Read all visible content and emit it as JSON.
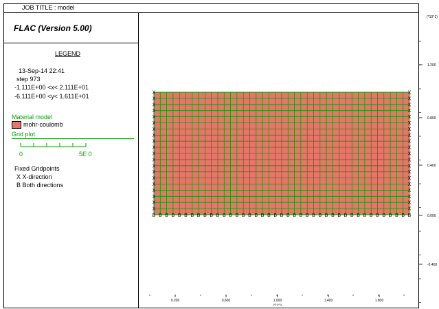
{
  "header": {
    "job_title": "JOB TITLE : model"
  },
  "left_panel": {
    "version": "FLAC (Version 5.00)",
    "legend_title": "LEGEND",
    "date": "13-Sep-14  22:41",
    "step": "step     973",
    "x_range": "-1.111E+00 <x<  2.111E+01",
    "y_range": "-6.111E+00 <y<  1.611E+01",
    "material_model_label": "Material model",
    "material_name": "mohr-coulomb",
    "grid_plot_label": "Grid plot",
    "scale_start": "0",
    "scale_end": "5E  0",
    "fixed_gridpoints_label": "Fixed Gridpoints",
    "fixed_x": "X  X-direction",
    "fixed_b": "B  Both directions"
  },
  "colors": {
    "material_fill": "#e8756a",
    "grid_line": "#00a000",
    "border": "#000000"
  },
  "axes": {
    "y_multiplier": "(*10^1)",
    "y_ticks": [
      "1.200",
      "0.800",
      "0.400",
      "0.000",
      "-0.400"
    ],
    "x_ticks": [
      "0.200",
      "0.600",
      "1.000",
      "1.400",
      "1.800"
    ],
    "x_multiplier": "(*10^1)"
  },
  "grid": {
    "columns": 40,
    "rows": 20,
    "fixed_left_marker": "X",
    "fixed_right_marker": "X",
    "fixed_bottom_marker": "B"
  }
}
